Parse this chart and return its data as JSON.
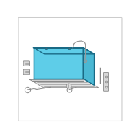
{
  "background_color": "#ffffff",
  "border_color": "#cccccc",
  "battery": {
    "fill_top": "#5ecde8",
    "fill_front": "#5ecde8",
    "fill_right": "#4ab8d4",
    "edge_color": "#1a6a85",
    "line_width": 1.0
  },
  "hardware_color": "#888888",
  "hardware_lw": 0.7,
  "vent_color": "#999999",
  "vent_lw": 0.9
}
